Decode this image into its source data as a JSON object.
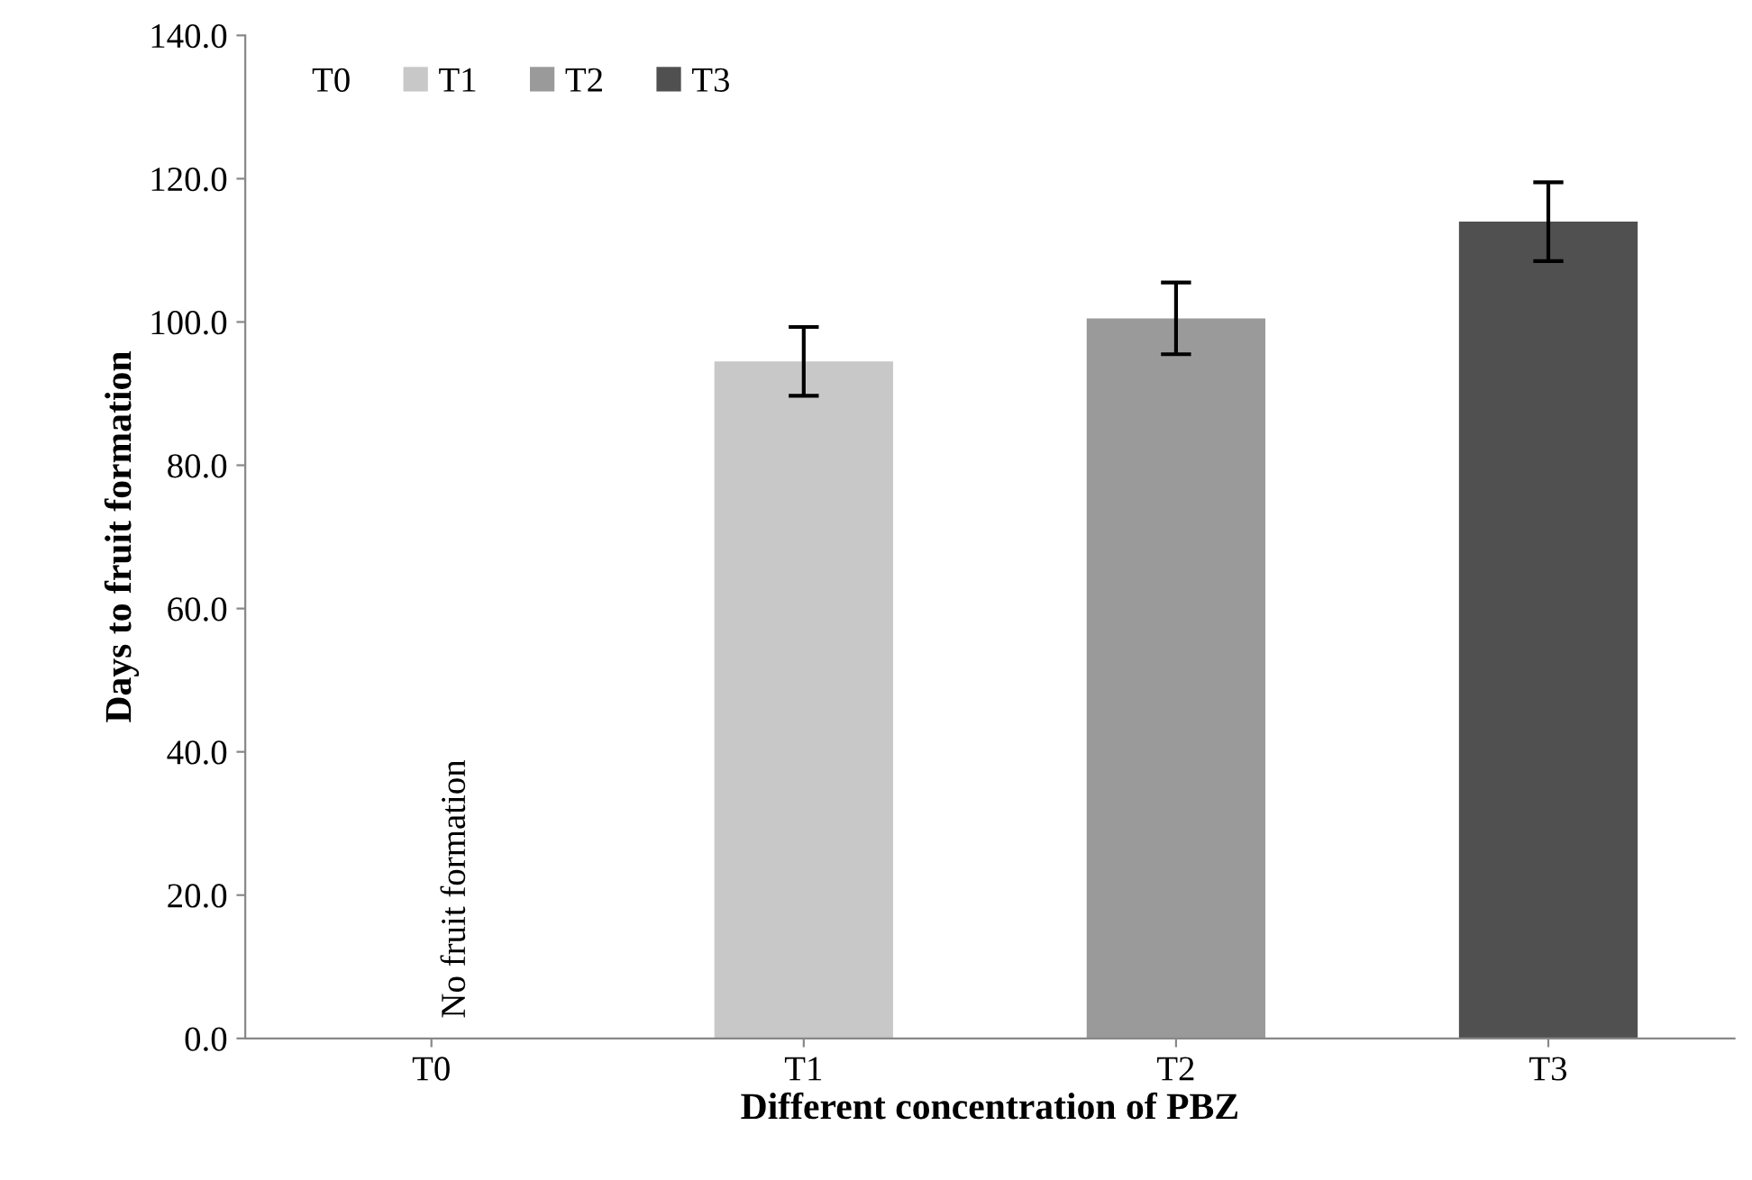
{
  "chart_data": {
    "type": "bar",
    "xlabel": "Different concentration of PBZ",
    "ylabel": "Days to fruit formation",
    "categories": [
      "T0",
      "T1",
      "T2",
      "T3"
    ],
    "series": [
      {
        "name": "T0",
        "values": [
          0,
          null,
          null,
          null
        ]
      },
      {
        "name": "T1",
        "color": "#c8c8c8",
        "values": [
          null,
          94.5,
          null,
          null
        ],
        "errors": [
          null,
          4.8,
          null,
          null
        ]
      },
      {
        "name": "T2",
        "color": "#9a9a9a",
        "values": [
          null,
          null,
          100.5,
          null
        ],
        "errors": [
          null,
          null,
          5.0,
          null
        ]
      },
      {
        "name": "T3",
        "color": "#505050",
        "values": [
          null,
          null,
          null,
          114.0
        ],
        "errors": [
          null,
          null,
          null,
          5.5
        ]
      }
    ],
    "ylim": [
      0,
      140
    ],
    "yticks": [
      {
        "value": 0,
        "label": "0.0"
      },
      {
        "value": 20,
        "label": "20.0"
      },
      {
        "value": 40,
        "label": "40.0"
      },
      {
        "value": 60,
        "label": "60.0"
      },
      {
        "value": 80,
        "label": "80.0"
      },
      {
        "value": 100,
        "label": "100.0"
      },
      {
        "value": 120,
        "label": "120.0"
      },
      {
        "value": 140,
        "label": "140.0"
      }
    ],
    "annotations": [
      {
        "text": "No fruit formation",
        "x": "T0",
        "y": 0
      }
    ],
    "legend": "top left",
    "grid": false
  }
}
